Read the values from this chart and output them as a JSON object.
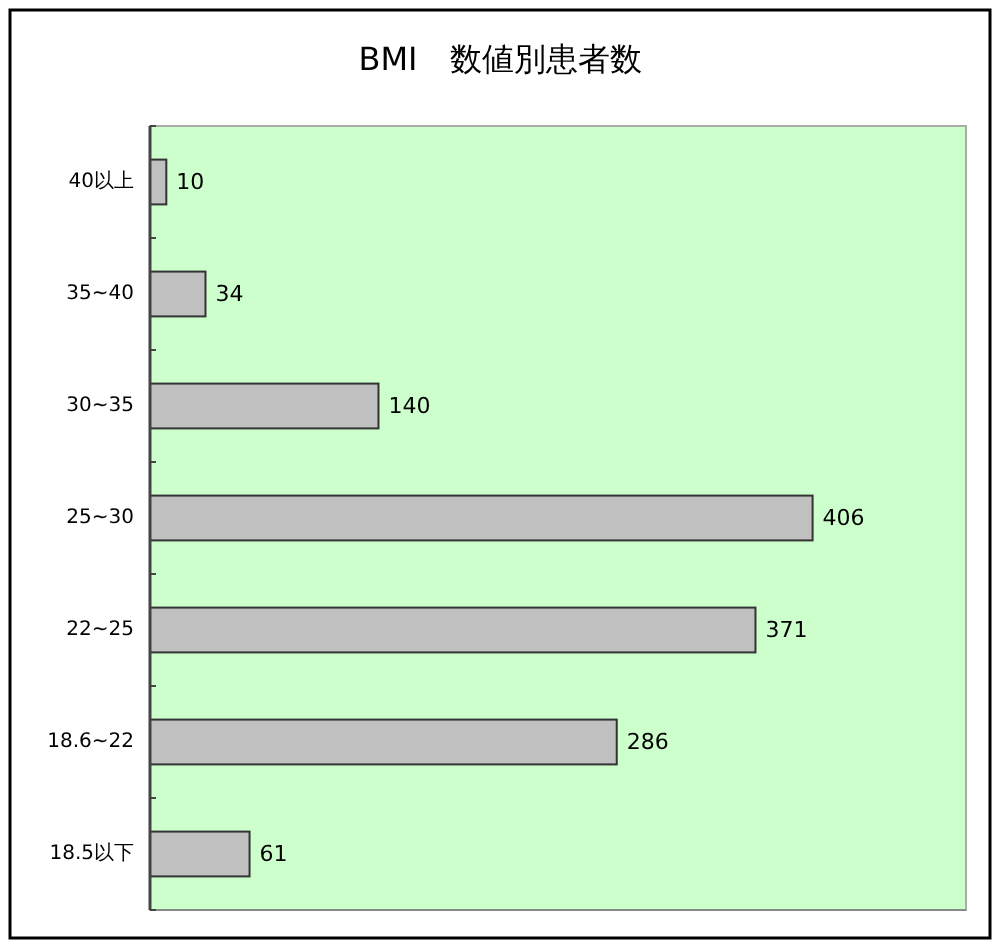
{
  "chart_data": {
    "type": "bar",
    "orientation": "horizontal",
    "title": "BMI　数値別患者数",
    "categories": [
      "40以上",
      "35~40",
      "30~35",
      "25~30",
      "22~25",
      "18.6~22",
      "18.5以下"
    ],
    "values": [
      10,
      34,
      140,
      406,
      371,
      286,
      61
    ],
    "color": "#c0c0c0",
    "xlim": [
      0,
      500
    ],
    "tick_labels": "y",
    "data_labels": true
  }
}
